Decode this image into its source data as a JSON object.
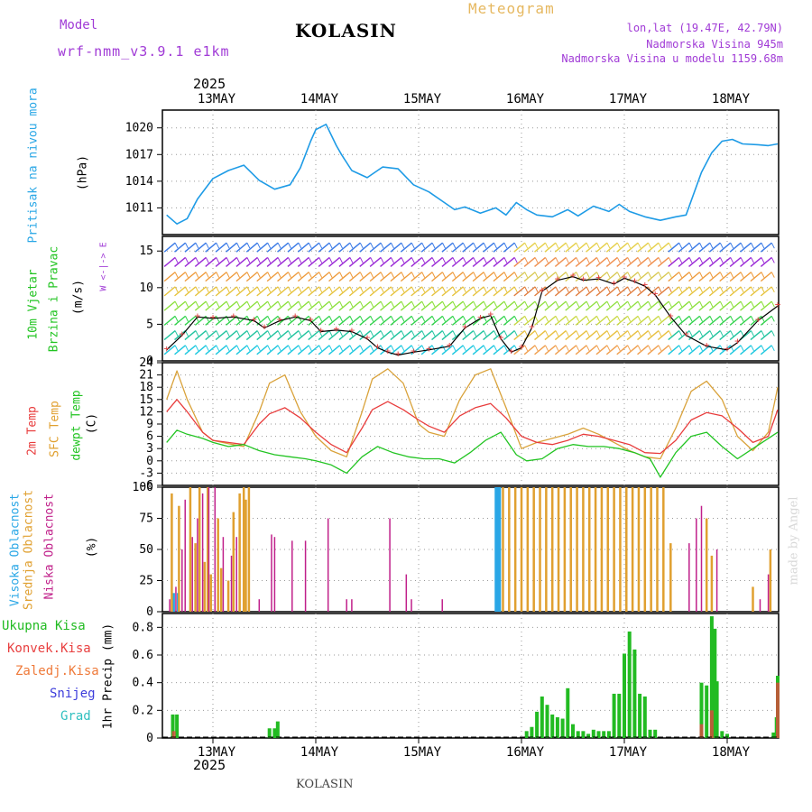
{
  "header": {
    "model_label": "Model",
    "model_name": "wrf-nmm_v3.9.1 e1km",
    "title": "KOLASIN",
    "meteogram_label": "Meteogram",
    "coords": "lon,lat (19.47E, 42.79N)",
    "altitude": "Nadmorska Visina 945m",
    "model_altitude": "Nadmorska Visina u modelu 1159.68m",
    "year": "2025",
    "footer_station": "KOLASIN",
    "watermark": "made by Angel"
  },
  "colors": {
    "pressure": "#1e9be6",
    "temp2m": "#e83c3c",
    "sfc_temp": "#d9a23a",
    "dewpoint": "#22c422",
    "high_cloud": "#2aa7e6",
    "mid_cloud": "#e0a030",
    "low_cloud": "#c0208a",
    "total_rain": "#22bb22",
    "conv_rain": "#e84040",
    "frz_rain": "#ef7a3a",
    "snow": "#3d3ddb",
    "hail": "#30c0c0",
    "grid": "#999999",
    "purple_text": "#a03ad6",
    "orange_text": "#e6b860"
  },
  "x_axis": {
    "day_labels": [
      "13MAY",
      "14MAY",
      "15MAY",
      "16MAY",
      "17MAY",
      "18MAY"
    ],
    "year_label": "2025"
  },
  "panels": {
    "pressure": {
      "ylabel_main": "Pritisak na nivou mora",
      "ylabel_unit": "(hPa)"
    },
    "wind": {
      "ylabel_main": "10m Vjetar",
      "ylabel_sub": "Brzina i Pravac",
      "ylabel_unit": "(m/s)",
      "compass": "W <-|-> E"
    },
    "temp": {
      "ylabel_temp2m": "2m Temp",
      "ylabel_sfc": "SFC Temp",
      "ylabel_dew": "dewpt Temp",
      "ylabel_unit": "(C)"
    },
    "cloud": {
      "ylabel_high": "Visoka Oblacnost",
      "ylabel_mid": "Srednja Oblacnost",
      "ylabel_low": "Niska Oblacnost",
      "ylabel_unit": "(%)"
    },
    "precip": {
      "ylabel_main": "1hr Precip",
      "ylabel_unit": "(mm)",
      "legend": [
        "Ukupna Kisa",
        "Konvek.Kisa",
        "Zaledj.Kisa",
        "Snijeg",
        "Grad"
      ]
    }
  },
  "chart_data": [
    {
      "type": "line",
      "panel": "pressure",
      "title": "",
      "ylabel": "Pritisak na nivou mora (hPa)",
      "ylim": [
        1008,
        1022
      ],
      "y_ticks": [
        1011,
        1014,
        1017,
        1020
      ],
      "x_unit": "days since 13MAY 00UTC",
      "xlim": [
        -0.45,
        5.5
      ],
      "series": [
        {
          "name": "pressure",
          "x": [
            -0.45,
            -0.35,
            -0.25,
            -0.15,
            0.0,
            0.15,
            0.3,
            0.45,
            0.6,
            0.75,
            0.85,
            0.95,
            1.0,
            1.1,
            1.2,
            1.25,
            1.35,
            1.5,
            1.65,
            1.8,
            1.95,
            2.1,
            2.25,
            2.35,
            2.45,
            2.6,
            2.75,
            2.85,
            2.95,
            3.05,
            3.15,
            3.3,
            3.45,
            3.55,
            3.7,
            3.85,
            3.95,
            4.05,
            4.2,
            4.35,
            4.5,
            4.6,
            4.75,
            4.85,
            4.95,
            5.05,
            5.15,
            5.3,
            5.4,
            5.5
          ],
          "y": [
            1010.2,
            1009.2,
            1009.8,
            1012.0,
            1014.3,
            1015.2,
            1015.8,
            1014.1,
            1013.1,
            1013.6,
            1015.5,
            1018.5,
            1019.8,
            1020.4,
            1018.0,
            1017.0,
            1015.2,
            1014.4,
            1015.6,
            1015.4,
            1013.6,
            1012.8,
            1011.6,
            1010.8,
            1011.1,
            1010.4,
            1011.0,
            1010.2,
            1011.6,
            1010.8,
            1010.2,
            1010.0,
            1010.8,
            1010.1,
            1011.2,
            1010.6,
            1011.4,
            1010.6,
            1010.0,
            1009.6,
            1010.0,
            1010.2,
            1015.0,
            1017.2,
            1018.5,
            1018.7,
            1018.2,
            1018.1,
            1018.0,
            1018.2
          ]
        }
      ]
    },
    {
      "type": "line",
      "panel": "wind",
      "title": "",
      "ylabel": "10m Vjetar Brzina i Pravac (m/s)",
      "ylim": [
        0,
        17
      ],
      "y_ticks": [
        0,
        5,
        10,
        15
      ],
      "xlim": [
        -0.45,
        5.5
      ],
      "series": [
        {
          "name": "wind speed",
          "x": [
            -0.45,
            -0.3,
            -0.15,
            0.0,
            0.2,
            0.4,
            0.5,
            0.65,
            0.8,
            0.95,
            1.05,
            1.2,
            1.35,
            1.5,
            1.6,
            1.7,
            1.8,
            1.95,
            2.1,
            2.3,
            2.45,
            2.6,
            2.7,
            2.8,
            2.9,
            3.0,
            3.1,
            3.2,
            3.35,
            3.5,
            3.6,
            3.75,
            3.9,
            4.0,
            4.1,
            4.2,
            4.3,
            4.45,
            4.6,
            4.8,
            5.0,
            5.1,
            5.3,
            5.5
          ],
          "y": [
            1.5,
            3.5,
            6.0,
            5.8,
            6.0,
            5.5,
            4.5,
            5.5,
            6.0,
            5.5,
            4.0,
            4.2,
            4.0,
            3.0,
            1.8,
            1.2,
            0.8,
            1.2,
            1.5,
            2.0,
            4.5,
            5.8,
            6.2,
            3.0,
            1.2,
            1.8,
            4.5,
            9.5,
            11.0,
            11.5,
            11.0,
            11.2,
            10.5,
            11.3,
            10.8,
            10.2,
            9.0,
            6.0,
            3.5,
            2.0,
            1.5,
            2.5,
            5.5,
            7.5
          ]
        }
      ]
    },
    {
      "type": "line",
      "panel": "temperature",
      "title": "",
      "ylabel": "Temp (C)",
      "ylim": [
        -6,
        24
      ],
      "y_ticks": [
        -6,
        -3,
        0,
        3,
        6,
        9,
        12,
        15,
        18,
        21,
        24
      ],
      "xlim": [
        -0.45,
        5.5
      ],
      "series": [
        {
          "name": "2m Temp",
          "x": [
            -0.45,
            -0.35,
            -0.25,
            -0.1,
            0.0,
            0.15,
            0.3,
            0.45,
            0.55,
            0.7,
            0.85,
            1.0,
            1.15,
            1.3,
            1.45,
            1.55,
            1.7,
            1.85,
            2.0,
            2.1,
            2.25,
            2.4,
            2.55,
            2.7,
            2.85,
            3.0,
            3.15,
            3.3,
            3.45,
            3.6,
            3.75,
            3.9,
            4.05,
            4.2,
            4.35,
            4.5,
            4.65,
            4.8,
            4.95,
            5.1,
            5.25,
            5.4,
            5.5
          ],
          "y": [
            12.0,
            15.0,
            12.0,
            7.0,
            5.0,
            4.5,
            4.0,
            9.0,
            11.5,
            13.0,
            10.5,
            7.0,
            4.0,
            2.0,
            8.0,
            12.5,
            14.5,
            12.5,
            10.0,
            8.5,
            7.0,
            11.0,
            13.0,
            14.0,
            10.5,
            6.0,
            4.5,
            4.0,
            5.0,
            6.5,
            6.0,
            5.0,
            4.0,
            2.0,
            1.8,
            5.0,
            10.0,
            11.8,
            11.0,
            8.0,
            4.5,
            6.0,
            12.5
          ]
        },
        {
          "name": "SFC Temp",
          "x": [
            -0.45,
            -0.35,
            -0.25,
            -0.1,
            0.0,
            0.15,
            0.3,
            0.45,
            0.55,
            0.7,
            0.85,
            1.0,
            1.15,
            1.3,
            1.45,
            1.55,
            1.7,
            1.85,
            2.0,
            2.1,
            2.25,
            2.4,
            2.55,
            2.7,
            2.85,
            3.0,
            3.15,
            3.3,
            3.45,
            3.6,
            3.75,
            3.9,
            4.05,
            4.2,
            4.35,
            4.5,
            4.65,
            4.8,
            4.95,
            5.1,
            5.25,
            5.4,
            5.5
          ],
          "y": [
            15.0,
            22.0,
            15.0,
            7.0,
            5.0,
            4.2,
            3.5,
            12.0,
            19.0,
            21.0,
            12.0,
            6.0,
            2.5,
            1.0,
            12.0,
            20.0,
            22.5,
            19.0,
            9.0,
            7.0,
            6.0,
            15.0,
            21.0,
            22.5,
            13.0,
            3.0,
            4.5,
            5.5,
            6.5,
            8.0,
            6.5,
            4.5,
            2.5,
            1.0,
            0.5,
            8.0,
            17.0,
            19.5,
            15.0,
            6.0,
            2.5,
            7.0,
            18.0
          ]
        },
        {
          "name": "dewpt Temp",
          "x": [
            -0.45,
            -0.35,
            -0.25,
            -0.1,
            0.0,
            0.15,
            0.3,
            0.45,
            0.6,
            0.75,
            0.9,
            1.0,
            1.15,
            1.3,
            1.45,
            1.6,
            1.75,
            1.9,
            2.05,
            2.2,
            2.35,
            2.5,
            2.65,
            2.8,
            2.95,
            3.05,
            3.2,
            3.35,
            3.5,
            3.65,
            3.8,
            3.95,
            4.1,
            4.25,
            4.35,
            4.5,
            4.65,
            4.8,
            4.95,
            5.1,
            5.25,
            5.4,
            5.5
          ],
          "y": [
            4.5,
            7.5,
            6.5,
            5.5,
            4.5,
            3.5,
            4.0,
            2.5,
            1.5,
            1.0,
            0.5,
            0.0,
            -1.0,
            -3.0,
            1.0,
            3.5,
            2.0,
            1.0,
            0.5,
            0.5,
            -0.5,
            2.0,
            5.0,
            7.0,
            1.5,
            0.0,
            0.5,
            3.0,
            4.0,
            3.5,
            3.5,
            3.0,
            2.0,
            0.5,
            -4.0,
            2.0,
            6.0,
            7.0,
            3.5,
            0.5,
            3.0,
            5.5,
            7.0
          ]
        }
      ]
    },
    {
      "type": "bar",
      "panel": "cloud",
      "title": "",
      "ylabel": "Oblacnost (%)",
      "ylim": [
        0,
        100
      ],
      "y_ticks": [
        0,
        25,
        50,
        75,
        100
      ],
      "xlim": [
        -0.45,
        5.5
      ],
      "series": [
        {
          "name": "Visoka Oblacnost",
          "x": [
            -0.38,
            -0.34,
            2.75,
            2.76,
            2.77,
            2.78,
            2.79
          ],
          "values": [
            15,
            15,
            100,
            100,
            100,
            100,
            100
          ]
        },
        {
          "name": "Srednja Oblacnost",
          "x": [
            -0.4,
            -0.33,
            -0.22,
            -0.17,
            -0.13,
            -0.08,
            -0.05,
            -0.02,
            0.05,
            0.08,
            0.15,
            0.2,
            0.26,
            0.3,
            0.32,
            0.35,
            2.82,
            2.88,
            2.94,
            3.0,
            3.06,
            3.12,
            3.18,
            3.24,
            3.3,
            3.36,
            3.42,
            3.48,
            3.54,
            3.6,
            3.66,
            3.72,
            3.78,
            3.84,
            3.9,
            3.96,
            4.02,
            4.08,
            4.14,
            4.2,
            4.26,
            4.32,
            4.38,
            4.45,
            4.8,
            4.85,
            5.25,
            5.42
          ],
          "values": [
            95,
            85,
            100,
            55,
            100,
            40,
            100,
            30,
            75,
            35,
            25,
            80,
            95,
            100,
            90,
            100,
            100,
            100,
            100,
            100,
            100,
            100,
            100,
            100,
            100,
            100,
            100,
            100,
            100,
            100,
            100,
            100,
            100,
            100,
            100,
            100,
            100,
            100,
            100,
            100,
            100,
            100,
            100,
            55,
            75,
            45,
            20,
            50
          ]
        },
        {
          "name": "Niska Oblacnost",
          "x": [
            -0.42,
            -0.36,
            -0.3,
            -0.27,
            -0.2,
            -0.15,
            -0.1,
            -0.04,
            0.02,
            0.1,
            0.18,
            0.23,
            0.45,
            0.57,
            0.6,
            0.77,
            0.9,
            1.12,
            1.3,
            1.35,
            1.72,
            1.88,
            1.93,
            2.23,
            4.63,
            4.7,
            4.75,
            4.9,
            5.32,
            5.4
          ],
          "values": [
            10,
            20,
            50,
            90,
            60,
            75,
            95,
            100,
            100,
            60,
            45,
            60,
            10,
            62,
            60,
            57,
            57,
            75,
            10,
            10,
            75,
            30,
            10,
            10,
            55,
            75,
            85,
            50,
            10,
            30
          ]
        }
      ]
    },
    {
      "type": "bar",
      "panel": "precip",
      "title": "",
      "ylabel": "1hr Precip (mm)",
      "ylim": [
        0,
        0.9
      ],
      "y_ticks": [
        0,
        0.2,
        0.4,
        0.6,
        0.8
      ],
      "xlim": [
        -0.45,
        5.5
      ],
      "series": [
        {
          "name": "Ukupna Kisa",
          "x": [
            -0.39,
            -0.35,
            0.55,
            0.6,
            0.63,
            3.05,
            3.1,
            3.15,
            3.2,
            3.25,
            3.3,
            3.35,
            3.4,
            3.45,
            3.5,
            3.55,
            3.6,
            3.65,
            3.7,
            3.75,
            3.8,
            3.85,
            3.9,
            3.95,
            4.0,
            4.05,
            4.1,
            4.15,
            4.2,
            4.25,
            4.3,
            4.75,
            4.8,
            4.85,
            4.88,
            4.9,
            4.95,
            5.0,
            5.45,
            5.48,
            5.52
          ],
          "values": [
            0.17,
            0.17,
            0.07,
            0.07,
            0.12,
            0.05,
            0.08,
            0.19,
            0.3,
            0.24,
            0.17,
            0.15,
            0.14,
            0.36,
            0.1,
            0.05,
            0.05,
            0.03,
            0.06,
            0.05,
            0.05,
            0.05,
            0.32,
            0.32,
            0.61,
            0.77,
            0.64,
            0.32,
            0.3,
            0.06,
            0.06,
            0.4,
            0.38,
            0.88,
            0.79,
            0.41,
            0.05,
            0.03,
            0.04,
            0.15,
            0.45
          ]
        },
        {
          "name": "Konvek.Kisa",
          "x": [
            -0.38,
            4.75,
            4.85,
            5.5
          ],
          "values": [
            0.05,
            0.1,
            0.2,
            0.4
          ]
        }
      ]
    }
  ]
}
